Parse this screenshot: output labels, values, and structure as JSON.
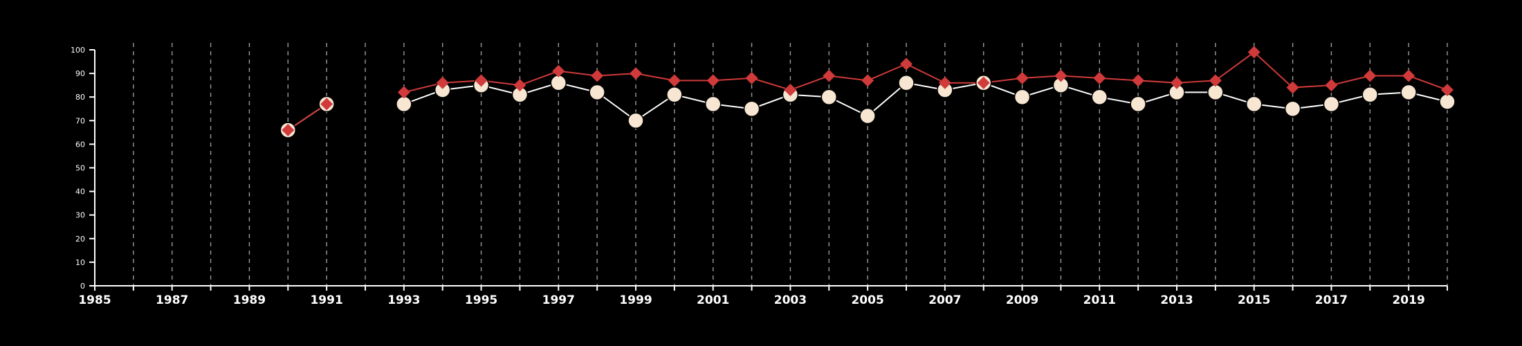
{
  "chart_data": {
    "type": "line",
    "title": "",
    "xlabel": "",
    "ylabel": "",
    "xlim": [
      1985,
      2020
    ],
    "ylim": [
      0,
      100
    ],
    "x_ticks": [
      "1985",
      "1987",
      "1989",
      "1991",
      "1993",
      "1995",
      "1997",
      "1999",
      "2001",
      "2003",
      "2005",
      "2007",
      "2009",
      "2011",
      "2013",
      "2015",
      "2017",
      "2019"
    ],
    "y_ticks": [
      "0",
      "10",
      "20",
      "30",
      "40",
      "50",
      "60",
      "70",
      "80",
      "90",
      "100"
    ],
    "grid": "vertical dashed",
    "colors": {
      "background": "#000000",
      "series_red": "#d03a3a",
      "series_cream": "#f7e6d2",
      "series_cream_line": "#ffffff",
      "grid": "#9a9a9a"
    },
    "x": [
      1990,
      1991,
      1993,
      1994,
      1995,
      1996,
      1997,
      1998,
      1999,
      2000,
      2001,
      2002,
      2003,
      2004,
      2005,
      2006,
      2007,
      2008,
      2009,
      2010,
      2011,
      2012,
      2013,
      2014,
      2015,
      2016,
      2017,
      2018,
      2019,
      2020
    ],
    "series": [
      {
        "marker": "diamond",
        "color": "#d03a3a",
        "values": [
          66,
          77,
          82,
          86,
          87,
          85,
          91,
          89,
          90,
          87,
          87,
          88,
          83,
          89,
          87,
          94,
          86,
          86,
          88,
          89,
          88,
          87,
          86,
          87,
          99,
          84,
          85,
          89,
          89,
          83
        ]
      },
      {
        "marker": "circle",
        "color": "#f7e6d2",
        "values": [
          66,
          77,
          77,
          83,
          85,
          81,
          86,
          82,
          70,
          81,
          77,
          75,
          81,
          80,
          72,
          86,
          83,
          86,
          80,
          85,
          80,
          77,
          82,
          82,
          77,
          75,
          77,
          81,
          82,
          78
        ]
      }
    ]
  }
}
